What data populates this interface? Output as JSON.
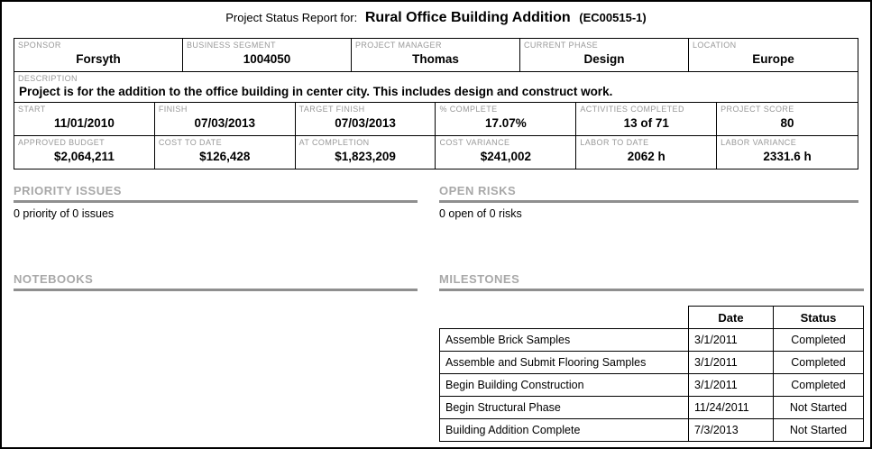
{
  "title": {
    "prefix": "Project Status Report for:",
    "project_name": "Rural Office Building Addition",
    "project_id": "(EC00515-1)"
  },
  "info": {
    "top": [
      {
        "label": "SPONSOR",
        "value": "Forsyth"
      },
      {
        "label": "BUSINESS SEGMENT",
        "value": "1004050"
      },
      {
        "label": "PROJECT MANAGER",
        "value": "Thomas"
      },
      {
        "label": "CURRENT PHASE",
        "value": "Design"
      },
      {
        "label": "LOCATION",
        "value": "Europe"
      }
    ],
    "description": {
      "label": "DESCRIPTION",
      "value": "Project is for the addition to the office building in center city. This includes design and construct work."
    },
    "dates": [
      {
        "label": "START",
        "value": "11/01/2010"
      },
      {
        "label": "FINISH",
        "value": "07/03/2013"
      },
      {
        "label": "TARGET FINISH",
        "value": "07/03/2013"
      },
      {
        "label": "% COMPLETE",
        "value": "17.07%"
      },
      {
        "label": "ACTIVITIES COMPLETED",
        "value": "13 of 71"
      },
      {
        "label": "PROJECT SCORE",
        "value": "80"
      }
    ],
    "costs": [
      {
        "label": "APPROVED BUDGET",
        "value": "$2,064,211"
      },
      {
        "label": "COST TO DATE",
        "value": "$126,428"
      },
      {
        "label": "AT COMPLETION",
        "value": "$1,823,209"
      },
      {
        "label": "COST VARIANCE",
        "value": "$241,002"
      },
      {
        "label": "LABOR TO DATE",
        "value": "2062 h"
      },
      {
        "label": "LABOR VARIANCE",
        "value": "2331.6 h"
      }
    ]
  },
  "sections": {
    "priority_issues": {
      "title": "PRIORITY ISSUES",
      "content": "0 priority of 0 issues"
    },
    "open_risks": {
      "title": "OPEN RISKS",
      "content": "0 open of 0 risks"
    },
    "notebooks": {
      "title": "NOTEBOOKS"
    },
    "milestones": {
      "title": "MILESTONES"
    }
  },
  "milestones_table": {
    "headers": {
      "name": "",
      "date": "Date",
      "status": "Status"
    },
    "rows": [
      {
        "name": "Assemble Brick Samples",
        "date": "3/1/2011",
        "status": "Completed"
      },
      {
        "name": "Assemble and Submit Flooring Samples",
        "date": "3/1/2011",
        "status": "Completed"
      },
      {
        "name": "Begin Building Construction",
        "date": "3/1/2011",
        "status": "Completed"
      },
      {
        "name": "Begin Structural Phase",
        "date": "11/24/2011",
        "status": "Not Started"
      },
      {
        "name": "Building Addition Complete",
        "date": "7/3/2013",
        "status": "Not Started"
      }
    ]
  },
  "colors": {
    "border": "#000000",
    "label_gray": "#999999",
    "section_gray": "#a8a8a8",
    "rule_gray": "#8f8f8f"
  }
}
